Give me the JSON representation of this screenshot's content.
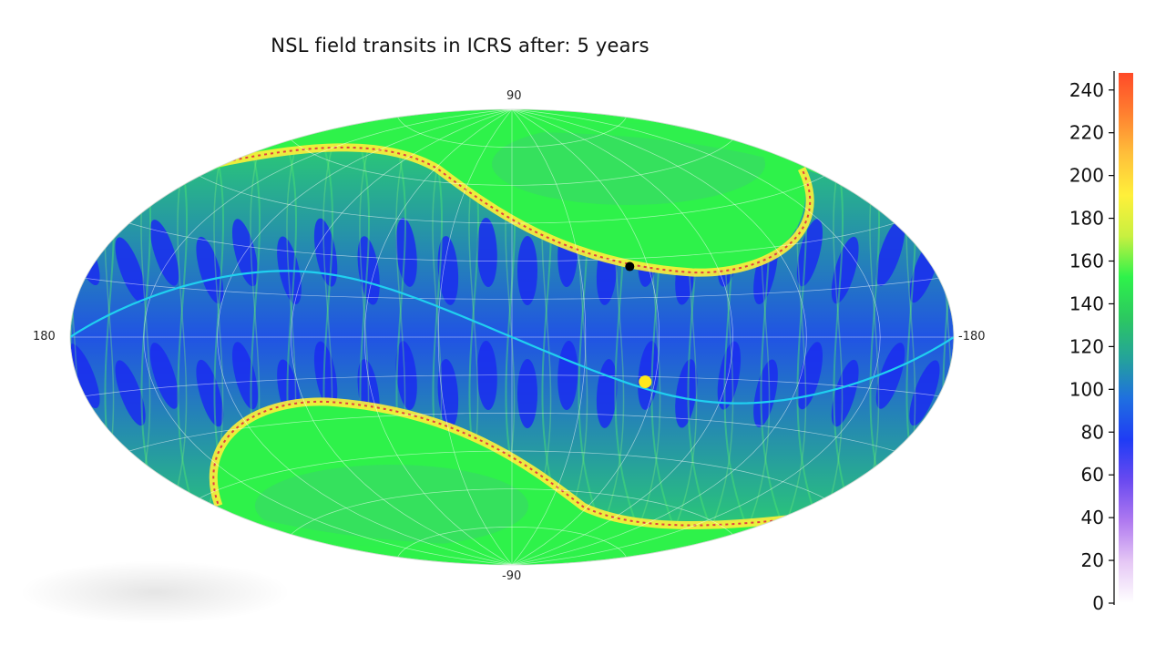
{
  "chart_data": {
    "type": "heatmap",
    "projection": "aitoff",
    "title": "NSL field transits in ICRS after:  5 years",
    "axis_labels": {
      "top": "90",
      "bottom": "-90",
      "left": "180",
      "right": "-180"
    },
    "colorbar": {
      "min": 0,
      "max": 248,
      "ticks": [
        "0",
        "20",
        "40",
        "60",
        "80",
        "100",
        "120",
        "140",
        "160",
        "180",
        "200",
        "220",
        "240"
      ],
      "colors": [
        "#ffffff",
        "#e6c8f5",
        "#b07af0",
        "#6a4af0",
        "#1f3cf5",
        "#1f6fe0",
        "#24a39a",
        "#2cc860",
        "#2ef24a",
        "#c8f040",
        "#fff03a",
        "#ffc03a",
        "#ff8030",
        "#ff4a28"
      ]
    },
    "markers": [
      {
        "name": "black-marker",
        "color": "#000000",
        "lon": -52,
        "lat": 27
      },
      {
        "name": "yellow-marker",
        "color": "#ffe81a",
        "lon": -56,
        "lat": -17
      }
    ],
    "grid": true,
    "colors": {
      "low": "#1f3cf5",
      "mid": "#26b0a0",
      "green": "#2ef24a",
      "high": "#fff03a",
      "peak": "#e04040",
      "ecliptic": "#20d0f0"
    }
  }
}
